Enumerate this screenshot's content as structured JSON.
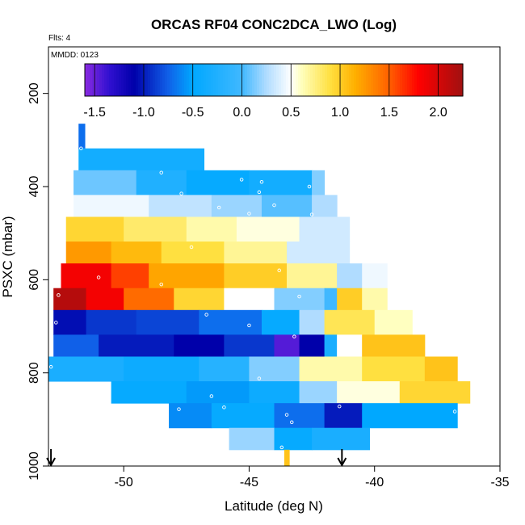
{
  "chart_data": {
    "type": "heatmap",
    "title": "ORCAS RF04 CONC2DCA_LWO (Log)",
    "flights_label": "Flts: 4",
    "date_label": "MMDD: 0123",
    "xlabel": "Latitude (deg N)",
    "ylabel": "PSXC (mbar)",
    "xlim": [
      -53.0,
      -35.0
    ],
    "ylim": [
      1000,
      100
    ],
    "x_ticks": [
      -50,
      -45,
      -40,
      -35
    ],
    "y_ticks": [
      200,
      400,
      600,
      800,
      1000
    ],
    "colorbar": {
      "range": [
        -1.6,
        2.25
      ],
      "ticks": [
        -1.5,
        -1.0,
        -0.5,
        0.0,
        0.5,
        1.0,
        1.5,
        2.0
      ],
      "tick_labels": [
        "-1.5",
        "-1.0",
        "-0.5",
        "0.0",
        "0.5",
        "1.0",
        "1.5",
        "2.0"
      ],
      "stops": [
        {
          "v": -1.6,
          "c": "#8a2be2"
        },
        {
          "v": -1.35,
          "c": "#3010d0"
        },
        {
          "v": -1.1,
          "c": "#0000aa"
        },
        {
          "v": -0.75,
          "c": "#1060e8"
        },
        {
          "v": -0.5,
          "c": "#00a8ff"
        },
        {
          "v": 0.0,
          "c": "#40b8ff"
        },
        {
          "v": 0.25,
          "c": "#b0dcff"
        },
        {
          "v": 0.5,
          "c": "#ffffff"
        },
        {
          "v": 0.6,
          "c": "#ffffc0"
        },
        {
          "v": 0.9,
          "c": "#ffe040"
        },
        {
          "v": 1.15,
          "c": "#ffb000"
        },
        {
          "v": 1.5,
          "c": "#ff6000"
        },
        {
          "v": 1.8,
          "c": "#ff0000"
        },
        {
          "v": 2.25,
          "c": "#a01010"
        }
      ]
    },
    "markers": [
      {
        "lat": -52.9,
        "label": "start"
      },
      {
        "lat": -41.3,
        "label": "end"
      }
    ],
    "rows": [
      {
        "p_top": 265,
        "p_bot": 318,
        "values": [
          {
            "x0": -51.8,
            "x1": -51.55,
            "v": -0.7
          }
        ]
      },
      {
        "p_top": 318,
        "p_bot": 365,
        "values": [
          {
            "x0": -51.8,
            "x1": -46.8,
            "v": -0.35
          }
        ]
      },
      {
        "p_top": 365,
        "p_bot": 418,
        "values": [
          {
            "x0": -52.0,
            "x1": -49.5,
            "v": 0.1
          },
          {
            "x0": -49.5,
            "x1": -47.5,
            "v": -0.25
          },
          {
            "x0": -47.5,
            "x1": -45.0,
            "v": -0.45
          },
          {
            "x0": -45.0,
            "x1": -42.5,
            "v": -0.35
          },
          {
            "x0": -42.5,
            "x1": -42.0,
            "v": 0.15
          }
        ]
      },
      {
        "p_top": 418,
        "p_bot": 465,
        "values": [
          {
            "x0": -52.0,
            "x1": -49.0,
            "v": 0.45
          },
          {
            "x0": -49.0,
            "x1": -46.5,
            "v": 0.3
          },
          {
            "x0": -46.5,
            "x1": -44.5,
            "v": 0.2
          },
          {
            "x0": -44.5,
            "x1": -42.5,
            "v": 0.05
          },
          {
            "x0": -42.5,
            "x1": -41.5,
            "v": 0.25
          }
        ]
      },
      {
        "p_top": 465,
        "p_bot": 518,
        "values": [
          {
            "x0": -52.3,
            "x1": -50.0,
            "v": 0.95
          },
          {
            "x0": -50.0,
            "x1": -47.5,
            "v": 0.8
          },
          {
            "x0": -47.5,
            "x1": -45.5,
            "v": 0.65
          },
          {
            "x0": -45.5,
            "x1": -43.0,
            "v": 0.55
          },
          {
            "x0": -43.0,
            "x1": -41.0,
            "v": 0.35
          }
        ]
      },
      {
        "p_top": 518,
        "p_bot": 565,
        "values": [
          {
            "x0": -52.3,
            "x1": -50.5,
            "v": 1.25
          },
          {
            "x0": -50.5,
            "x1": -48.5,
            "v": 1.1
          },
          {
            "x0": -48.5,
            "x1": -46.0,
            "v": 0.9
          },
          {
            "x0": -46.0,
            "x1": -43.5,
            "v": 0.7
          },
          {
            "x0": -43.5,
            "x1": -41.0,
            "v": 0.35
          }
        ]
      },
      {
        "p_top": 565,
        "p_bot": 618,
        "values": [
          {
            "x0": -52.5,
            "x1": -50.5,
            "v": 1.85
          },
          {
            "x0": -50.5,
            "x1": -49.0,
            "v": 1.6
          },
          {
            "x0": -49.0,
            "x1": -46.0,
            "v": 1.2
          },
          {
            "x0": -46.0,
            "x1": -43.5,
            "v": 1.0
          },
          {
            "x0": -43.5,
            "x1": -41.5,
            "v": 0.7
          },
          {
            "x0": -41.5,
            "x1": -40.5,
            "v": 0.25
          },
          {
            "x0": -40.5,
            "x1": -39.5,
            "v": 0.45
          }
        ]
      },
      {
        "p_top": 618,
        "p_bot": 665,
        "values": [
          {
            "x0": -52.8,
            "x1": -51.5,
            "v": 2.15
          },
          {
            "x0": -51.5,
            "x1": -50.0,
            "v": 1.85
          },
          {
            "x0": -50.0,
            "x1": -48.0,
            "v": 1.45
          },
          {
            "x0": -48.0,
            "x1": -46.0,
            "v": 0.95
          },
          {
            "x0": -46.0,
            "x1": -44.0,
            "v": 0.5
          },
          {
            "x0": -44.0,
            "x1": -42.0,
            "v": 0.15
          },
          {
            "x0": -42.0,
            "x1": -41.5,
            "v": 0.0
          },
          {
            "x0": -41.5,
            "x1": -40.5,
            "v": 1.0
          },
          {
            "x0": -40.5,
            "x1": -39.5,
            "v": 0.65
          }
        ]
      },
      {
        "p_top": 665,
        "p_bot": 718,
        "values": [
          {
            "x0": -52.8,
            "x1": -51.5,
            "v": -1.05
          },
          {
            "x0": -51.5,
            "x1": -49.5,
            "v": -0.9
          },
          {
            "x0": -49.5,
            "x1": -47.0,
            "v": -0.85
          },
          {
            "x0": -47.0,
            "x1": -44.5,
            "v": -0.7
          },
          {
            "x0": -44.5,
            "x1": -43.0,
            "v": -0.45
          },
          {
            "x0": -43.0,
            "x1": -42.0,
            "v": 0.25
          },
          {
            "x0": -42.0,
            "x1": -40.0,
            "v": 0.85
          },
          {
            "x0": -40.0,
            "x1": -38.5,
            "v": 0.6
          }
        ]
      },
      {
        "p_top": 718,
        "p_bot": 765,
        "values": [
          {
            "x0": -52.8,
            "x1": -51.0,
            "v": -0.75
          },
          {
            "x0": -51.0,
            "x1": -48.0,
            "v": -1.0
          },
          {
            "x0": -48.0,
            "x1": -46.0,
            "v": -1.1
          },
          {
            "x0": -46.0,
            "x1": -44.0,
            "v": -0.9
          },
          {
            "x0": -44.0,
            "x1": -43.0,
            "v": -1.45
          },
          {
            "x0": -43.0,
            "x1": -42.0,
            "v": -1.1
          },
          {
            "x0": -42.0,
            "x1": -41.5,
            "v": -0.3
          },
          {
            "x0": -41.5,
            "x1": -40.5,
            "v": 0.5
          },
          {
            "x0": -40.5,
            "x1": -38.0,
            "v": 1.05
          }
        ]
      },
      {
        "p_top": 765,
        "p_bot": 818,
        "values": [
          {
            "x0": -53.0,
            "x1": -50.0,
            "v": -0.3
          },
          {
            "x0": -50.0,
            "x1": -47.0,
            "v": -0.4
          },
          {
            "x0": -47.0,
            "x1": -45.0,
            "v": -0.2
          },
          {
            "x0": -45.0,
            "x1": -43.0,
            "v": 0.15
          },
          {
            "x0": -43.0,
            "x1": -40.5,
            "v": 0.65
          },
          {
            "x0": -40.5,
            "x1": -38.0,
            "v": 0.9
          },
          {
            "x0": -38.0,
            "x1": -36.7,
            "v": 1.05
          }
        ]
      },
      {
        "p_top": 818,
        "p_bot": 865,
        "values": [
          {
            "x0": -50.5,
            "x1": -47.5,
            "v": -0.45
          },
          {
            "x0": -47.5,
            "x1": -45.0,
            "v": -0.55
          },
          {
            "x0": -45.0,
            "x1": -43.0,
            "v": -0.4
          },
          {
            "x0": -43.0,
            "x1": -41.5,
            "v": 0.2
          },
          {
            "x0": -41.5,
            "x1": -39.0,
            "v": 0.55
          },
          {
            "x0": -39.0,
            "x1": -36.2,
            "v": 0.95
          }
        ]
      },
      {
        "p_top": 865,
        "p_bot": 918,
        "values": [
          {
            "x0": -48.2,
            "x1": -46.5,
            "v": -0.6
          },
          {
            "x0": -46.5,
            "x1": -44.0,
            "v": -0.45
          },
          {
            "x0": -44.0,
            "x1": -42.0,
            "v": -0.7
          },
          {
            "x0": -42.0,
            "x1": -40.5,
            "v": -1.0
          },
          {
            "x0": -40.5,
            "x1": -36.7,
            "v": -0.5
          }
        ]
      },
      {
        "p_top": 918,
        "p_bot": 965,
        "values": [
          {
            "x0": -45.8,
            "x1": -44.0,
            "v": 0.2
          },
          {
            "x0": -44.0,
            "x1": -42.5,
            "v": -0.45
          },
          {
            "x0": -42.5,
            "x1": -40.2,
            "v": -0.3
          }
        ]
      },
      {
        "p_top": 965,
        "p_bot": 1000,
        "values": [
          {
            "x0": -43.6,
            "x1": -43.4,
            "v": 1.05
          }
        ]
      }
    ],
    "points": [
      {
        "lat": -51.7,
        "p": 318
      },
      {
        "lat": -46.7,
        "p": 330
      },
      {
        "lat": -48.5,
        "p": 370
      },
      {
        "lat": -45.3,
        "p": 385
      },
      {
        "lat": -44.5,
        "p": 390
      },
      {
        "lat": -44.6,
        "p": 412
      },
      {
        "lat": -42.6,
        "p": 400
      },
      {
        "lat": -47.7,
        "p": 415
      },
      {
        "lat": -46.2,
        "p": 445
      },
      {
        "lat": -44.0,
        "p": 440
      },
      {
        "lat": -45.0,
        "p": 458
      },
      {
        "lat": -42.5,
        "p": 460
      },
      {
        "lat": -47.3,
        "p": 530
      },
      {
        "lat": -43.8,
        "p": 580
      },
      {
        "lat": -51.0,
        "p": 595
      },
      {
        "lat": -48.5,
        "p": 610
      },
      {
        "lat": -45.8,
        "p": 622
      },
      {
        "lat": -43.0,
        "p": 636
      },
      {
        "lat": -52.6,
        "p": 633
      },
      {
        "lat": -52.7,
        "p": 692
      },
      {
        "lat": -46.7,
        "p": 675
      },
      {
        "lat": -45.0,
        "p": 698
      },
      {
        "lat": -43.2,
        "p": 722
      },
      {
        "lat": -52.9,
        "p": 787
      },
      {
        "lat": -44.6,
        "p": 812
      },
      {
        "lat": -46.5,
        "p": 850
      },
      {
        "lat": -47.8,
        "p": 878
      },
      {
        "lat": -46.0,
        "p": 874
      },
      {
        "lat": -43.5,
        "p": 890
      },
      {
        "lat": -43.3,
        "p": 906
      },
      {
        "lat": -41.4,
        "p": 872
      },
      {
        "lat": -36.8,
        "p": 883
      },
      {
        "lat": -43.7,
        "p": 960
      }
    ]
  }
}
